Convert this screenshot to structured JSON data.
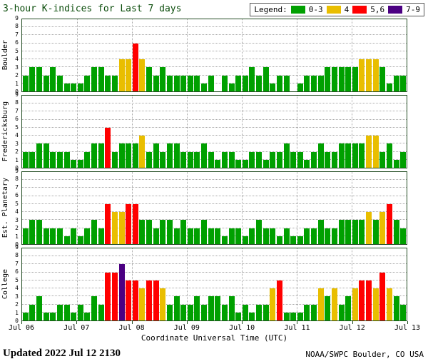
{
  "title": "3-hour K-indices for Last 7 days",
  "legend": {
    "label": "Legend:",
    "items": [
      {
        "label": "0-3",
        "color": "#00A000"
      },
      {
        "label": "4",
        "color": "#E9BE00"
      },
      {
        "label": "5,6",
        "color": "#FF0000"
      },
      {
        "label": "7-9",
        "color": "#4B0082"
      }
    ]
  },
  "footer": {
    "updated": "Updated 2022 Jul 12 2130",
    "credit": "NOAA/SWPC Boulder, CO USA"
  },
  "chart_data": {
    "type": "bar",
    "title": "3-hour K-indices for Last 7 days",
    "xlabel": "Coordinate Universal Time (UTC)",
    "x_tick_labels": [
      "Jul 06",
      "Jul 07",
      "Jul 08",
      "Jul 09",
      "Jul 10",
      "Jul 11",
      "Jul 12",
      "Jul 13"
    ],
    "ylim": [
      0,
      9
    ],
    "y_ticks": [
      0,
      1,
      2,
      3,
      4,
      5,
      6,
      7,
      8,
      9
    ],
    "days": 7,
    "bars_per_day": 8,
    "grid": "dotted",
    "legend_position": "top-right",
    "colors": {
      "green": "#00A000",
      "yellow": "#E9BE00",
      "red": "#FF0000",
      "purple": "#4B0082"
    },
    "color_rule": {
      "0-3": "green",
      "4": "yellow",
      "5-6": "red",
      "7-9": "purple"
    },
    "panels": [
      {
        "station": "Boulder",
        "values": [
          2,
          3,
          3,
          2,
          3,
          2,
          1,
          1,
          1,
          2,
          3,
          3,
          2,
          2,
          4,
          4,
          6,
          4,
          3,
          2,
          3,
          2,
          2,
          2,
          2,
          2,
          1,
          2,
          0,
          2,
          1,
          2,
          2,
          3,
          2,
          3,
          1,
          2,
          2,
          0,
          1,
          2,
          2,
          2,
          3,
          3,
          3,
          3,
          3,
          4,
          4,
          4,
          3,
          1,
          2,
          2
        ]
      },
      {
        "station": "Fredericksburg",
        "values": [
          2,
          2,
          3,
          3,
          2,
          2,
          2,
          1,
          1,
          2,
          3,
          3,
          5,
          2,
          3,
          3,
          3,
          4,
          2,
          3,
          2,
          3,
          3,
          2,
          2,
          2,
          3,
          2,
          1,
          2,
          2,
          1,
          1,
          2,
          2,
          1,
          2,
          2,
          3,
          2,
          2,
          1,
          2,
          3,
          2,
          2,
          3,
          3,
          3,
          3,
          4,
          4,
          2,
          3,
          1,
          2
        ]
      },
      {
        "station": "Est. Planetary",
        "values": [
          2,
          3,
          3,
          2,
          2,
          2,
          1,
          2,
          1,
          2,
          3,
          2,
          5,
          4,
          4,
          5,
          5,
          3,
          3,
          2,
          3,
          3,
          2,
          3,
          2,
          2,
          3,
          2,
          2,
          1,
          2,
          2,
          1,
          2,
          3,
          2,
          2,
          1,
          2,
          1,
          1,
          2,
          2,
          3,
          2,
          2,
          3,
          3,
          3,
          3,
          4,
          3,
          4,
          5,
          3,
          2
        ]
      },
      {
        "station": "College",
        "values": [
          1,
          2,
          3,
          1,
          1,
          2,
          2,
          1,
          2,
          1,
          3,
          2,
          6,
          6,
          7,
          5,
          5,
          4,
          5,
          5,
          4,
          2,
          3,
          2,
          2,
          3,
          2,
          3,
          3,
          2,
          3,
          1,
          2,
          1,
          2,
          2,
          4,
          5,
          1,
          1,
          1,
          2,
          2,
          4,
          3,
          4,
          2,
          3,
          4,
          5,
          5,
          4,
          6,
          4,
          3,
          2
        ]
      }
    ]
  }
}
